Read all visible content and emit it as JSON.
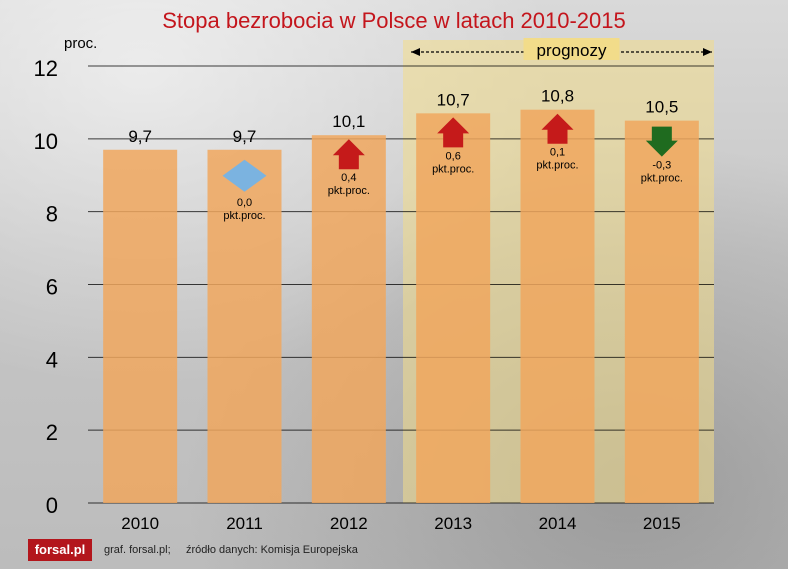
{
  "title": "Stopa bezrobocia w Polsce w latach 2010-2015",
  "footer": {
    "logo": "forsal.pl",
    "credit": "graf. forsal.pl;",
    "source": "źródło danych: Komisja Europejska"
  },
  "colors": {
    "bar": "#f0a75e",
    "forecast_band": "#f2dc8a",
    "up_arrow": "#c51a1a",
    "down_arrow": "#1f6b1f",
    "neutral_arrow": "#7bb3e0",
    "title": "#c4151c"
  },
  "chart_data": {
    "type": "bar",
    "ylabel": "proc.",
    "ylim": [
      0,
      12
    ],
    "yticks": [
      0,
      2,
      4,
      6,
      8,
      10,
      12
    ],
    "grid": true,
    "categories": [
      "2010",
      "2011",
      "2012",
      "2013",
      "2014",
      "2015"
    ],
    "values": [
      9.7,
      9.7,
      10.1,
      10.7,
      10.8,
      10.5
    ],
    "value_labels": [
      "9,7",
      "9,7",
      "10,1",
      "10,7",
      "10,8",
      "10,5"
    ],
    "ytick_labels": [
      "0",
      "2",
      "4",
      "6",
      "8",
      "10",
      "12"
    ],
    "forecast_label": "prognozy",
    "forecast_from": "2013",
    "changes": [
      null,
      {
        "direction": "neutral",
        "value": "0,0",
        "unit": "pkt.proc."
      },
      {
        "direction": "up",
        "value": "0,4",
        "unit": "pkt.proc."
      },
      {
        "direction": "up",
        "value": "0,6",
        "unit": "pkt.proc."
      },
      {
        "direction": "up",
        "value": "0,1",
        "unit": "pkt.proc."
      },
      {
        "direction": "down",
        "value": "-0,3",
        "unit": "pkt.proc."
      }
    ]
  }
}
